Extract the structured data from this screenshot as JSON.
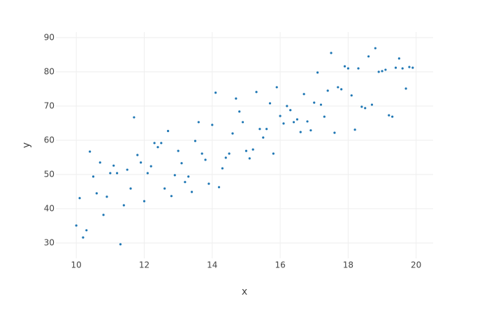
{
  "chart_data": {
    "type": "scatter",
    "xlabel": "x",
    "ylabel": "y",
    "color": "#1f77b4",
    "grid": true,
    "xlim": [
      9.4,
      20.5
    ],
    "ylim": [
      25.5,
      91.6
    ],
    "xticks": [
      10,
      12,
      14,
      16,
      18,
      20
    ],
    "yticks": [
      30,
      40,
      50,
      60,
      70,
      80,
      90
    ],
    "x": [
      10,
      10.1,
      10.2,
      10.3,
      10.4,
      10.5,
      10.6,
      10.7,
      10.8,
      10.9,
      11,
      11.1,
      11.2,
      11.3,
      11.4,
      11.5,
      11.6,
      11.7,
      11.8,
      11.9,
      12,
      12.1,
      12.2,
      12.3,
      12.4,
      12.5,
      12.6,
      12.7,
      12.8,
      12.9,
      13,
      13.1,
      13.2,
      13.3,
      13.4,
      13.5,
      13.6,
      13.7,
      13.8,
      13.9,
      14,
      14.1,
      14.2,
      14.3,
      14.4,
      14.5,
      14.6,
      14.7,
      14.8,
      14.9,
      15,
      15.1,
      15.2,
      15.3,
      15.4,
      15.5,
      15.6,
      15.7,
      15.8,
      15.9,
      16,
      16.1,
      16.2,
      16.3,
      16.4,
      16.5,
      16.6,
      16.7,
      16.8,
      16.9,
      17,
      17.1,
      17.2,
      17.3,
      17.4,
      17.5,
      17.6,
      17.7,
      17.8,
      17.9,
      18,
      18.1,
      18.2,
      18.3,
      18.4,
      18.5,
      18.6,
      18.7,
      18.8,
      18.9,
      19,
      19.1,
      19.2,
      19.3,
      19.4,
      19.5,
      19.6,
      19.7,
      19.8,
      19.9
    ],
    "values": [
      35.1,
      43.1,
      31.6,
      33.7,
      56.7,
      49.4,
      44.5,
      53.5,
      38.2,
      43.5,
      50.4,
      52.6,
      50.4,
      29.6,
      41.0,
      51.4,
      45.9,
      66.7,
      55.7,
      53.5,
      42.2,
      50.4,
      52.4,
      59.2,
      58.0,
      59.2,
      45.9,
      62.7,
      43.7,
      49.8,
      56.9,
      53.3,
      47.8,
      49.4,
      44.9,
      59.8,
      65.3,
      56.1,
      54.3,
      47.3,
      64.5,
      73.9,
      46.3,
      51.8,
      54.9,
      56.1,
      62.0,
      72.2,
      68.4,
      65.3,
      56.9,
      54.7,
      57.3,
      74.1,
      63.3,
      60.8,
      63.3,
      70.8,
      56.1,
      75.5,
      67.1,
      64.9,
      70.0,
      68.8,
      65.3,
      66.1,
      62.4,
      73.5,
      65.5,
      62.9,
      71.0,
      79.8,
      70.4,
      66.9,
      74.5,
      85.5,
      62.2,
      75.5,
      74.9,
      81.6,
      81.0,
      73.1,
      63.1,
      81.0,
      69.8,
      69.4,
      84.5,
      70.4,
      86.9,
      80.0,
      80.2,
      80.6,
      67.3,
      66.9,
      81.2,
      83.9,
      81.0,
      75.1,
      81.4,
      81.2
    ]
  }
}
